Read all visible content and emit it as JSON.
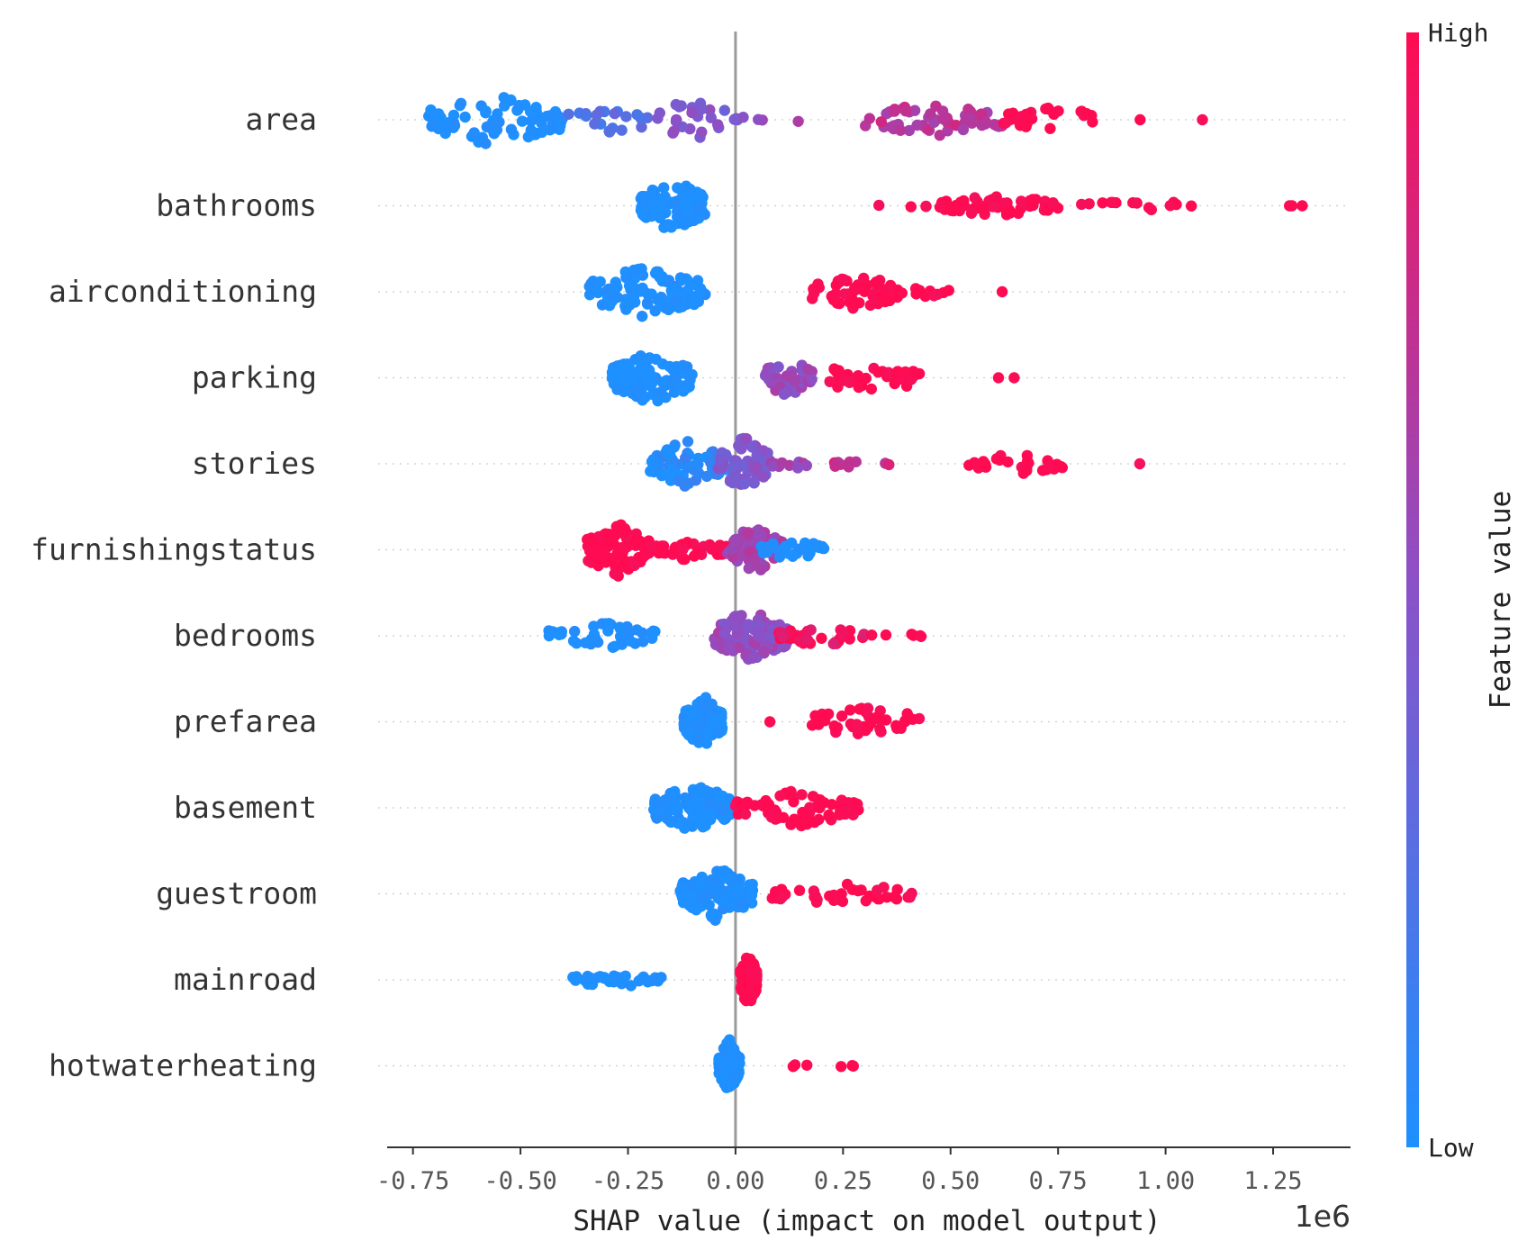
{
  "chart_data": {
    "type": "scatter",
    "subtype": "shap-beeswarm",
    "xlabel": "SHAP value (impact on model output)",
    "x_scale_note": "1e6",
    "xlim": [
      -0.81,
      1.43
    ],
    "xticks": [
      -0.75,
      -0.5,
      -0.25,
      0.0,
      0.25,
      0.5,
      0.75,
      1.0,
      1.25
    ],
    "xtick_labels": [
      "-0.75",
      "-0.50",
      "-0.25",
      "0.00",
      "0.25",
      "0.50",
      "0.75",
      "1.00",
      "1.25"
    ],
    "zero_line": 0.0,
    "colorbar": {
      "title": "Feature value",
      "high_label": "High",
      "low_label": "Low",
      "high_color": "#ff0b52",
      "low_color": "#1e90ff"
    },
    "features": [
      {
        "name": "area",
        "clusters": [
          {
            "from": -0.72,
            "to": -0.4,
            "n": 80,
            "level": 0.0,
            "spread": 1.0
          },
          {
            "from": -0.4,
            "to": -0.2,
            "n": 22,
            "level": 0.25,
            "spread": 0.6
          },
          {
            "from": -0.2,
            "to": 0.02,
            "n": 28,
            "level": 0.45,
            "spread": 0.8
          },
          {
            "from": 0.05,
            "to": 0.18,
            "n": 3,
            "level": 0.6,
            "spread": 0.1
          },
          {
            "from": 0.3,
            "to": 0.62,
            "n": 60,
            "level": 0.7,
            "spread": 0.7
          },
          {
            "from": 0.62,
            "to": 0.86,
            "n": 28,
            "level": 1.0,
            "spread": 0.5
          },
          {
            "from": 0.93,
            "to": 1.1,
            "n": 2,
            "level": 1.0,
            "spread": 0.0
          }
        ]
      },
      {
        "name": "bathrooms",
        "clusters": [
          {
            "from": -0.22,
            "to": -0.07,
            "n": 110,
            "level": 0.0,
            "spread": 1.0
          },
          {
            "from": 0.33,
            "to": 0.45,
            "n": 4,
            "level": 1.0,
            "spread": 0.1
          },
          {
            "from": 0.47,
            "to": 0.75,
            "n": 55,
            "level": 1.0,
            "spread": 0.4
          },
          {
            "from": 0.78,
            "to": 1.1,
            "n": 14,
            "level": 1.0,
            "spread": 0.2
          },
          {
            "from": 1.25,
            "to": 1.33,
            "n": 3,
            "level": 1.0,
            "spread": 0.0
          }
        ]
      },
      {
        "name": "airconditioning",
        "clusters": [
          {
            "from": -0.34,
            "to": -0.07,
            "n": 100,
            "level": 0.0,
            "spread": 1.0
          },
          {
            "from": 0.17,
            "to": 0.38,
            "n": 55,
            "level": 1.0,
            "spread": 0.7
          },
          {
            "from": 0.38,
            "to": 0.5,
            "n": 10,
            "level": 1.0,
            "spread": 0.2
          },
          {
            "from": 0.62,
            "to": 0.62,
            "n": 1,
            "level": 1.0,
            "spread": 0.0
          }
        ]
      },
      {
        "name": "parking",
        "clusters": [
          {
            "from": -0.29,
            "to": -0.1,
            "n": 95,
            "level": 0.0,
            "spread": 1.0
          },
          {
            "from": 0.06,
            "to": 0.19,
            "n": 40,
            "level": 0.55,
            "spread": 0.7
          },
          {
            "from": 0.19,
            "to": 0.43,
            "n": 40,
            "level": 1.0,
            "spread": 0.6
          },
          {
            "from": 0.55,
            "to": 0.7,
            "n": 2,
            "level": 1.0,
            "spread": 0.0
          }
        ]
      },
      {
        "name": "stories",
        "clusters": [
          {
            "from": -0.2,
            "to": -0.02,
            "n": 75,
            "level": 0.05,
            "spread": 0.9
          },
          {
            "from": -0.04,
            "to": 0.08,
            "n": 70,
            "level": 0.45,
            "spread": 1.0
          },
          {
            "from": 0.08,
            "to": 0.18,
            "n": 10,
            "level": 0.6,
            "spread": 0.2
          },
          {
            "from": 0.22,
            "to": 0.36,
            "n": 12,
            "level": 0.75,
            "spread": 0.2
          },
          {
            "from": 0.54,
            "to": 0.77,
            "n": 30,
            "level": 1.0,
            "spread": 0.4
          },
          {
            "from": 0.94,
            "to": 0.94,
            "n": 1,
            "level": 1.0,
            "spread": 0.0
          }
        ]
      },
      {
        "name": "furnishingstatus",
        "clusters": [
          {
            "from": -0.35,
            "to": -0.2,
            "n": 80,
            "level": 1.0,
            "spread": 1.0
          },
          {
            "from": -0.2,
            "to": -0.02,
            "n": 40,
            "level": 1.0,
            "spread": 0.4
          },
          {
            "from": -0.02,
            "to": 0.11,
            "n": 70,
            "level": 0.6,
            "spread": 0.9
          },
          {
            "from": 0.06,
            "to": 0.21,
            "n": 30,
            "level": 0.0,
            "spread": 0.4
          }
        ]
      },
      {
        "name": "bedrooms",
        "clusters": [
          {
            "from": -0.44,
            "to": -0.18,
            "n": 40,
            "level": 0.0,
            "spread": 0.5
          },
          {
            "from": -0.05,
            "to": 0.12,
            "n": 110,
            "level": 0.55,
            "spread": 1.0
          },
          {
            "from": 0.1,
            "to": 0.3,
            "n": 35,
            "level": 0.95,
            "spread": 0.4
          },
          {
            "from": 0.3,
            "to": 0.44,
            "n": 6,
            "level": 1.0,
            "spread": 0.1
          }
        ]
      },
      {
        "name": "prefarea",
        "clusters": [
          {
            "from": -0.12,
            "to": -0.03,
            "n": 110,
            "level": 0.0,
            "spread": 1.0
          },
          {
            "from": 0.08,
            "to": 0.08,
            "n": 1,
            "level": 1.0,
            "spread": 0.0
          },
          {
            "from": 0.17,
            "to": 0.43,
            "n": 45,
            "level": 1.0,
            "spread": 0.6
          }
        ]
      },
      {
        "name": "basement",
        "clusters": [
          {
            "from": -0.19,
            "to": -0.01,
            "n": 130,
            "level": 0.0,
            "spread": 1.0
          },
          {
            "from": 0.0,
            "to": 0.29,
            "n": 70,
            "level": 1.0,
            "spread": 0.7
          }
        ]
      },
      {
        "name": "guestroom",
        "clusters": [
          {
            "from": -0.13,
            "to": 0.04,
            "n": 120,
            "level": 0.0,
            "spread": 1.0
          },
          {
            "from": 0.07,
            "to": 0.41,
            "n": 40,
            "level": 1.0,
            "spread": 0.4
          }
        ]
      },
      {
        "name": "mainroad",
        "clusters": [
          {
            "from": -0.38,
            "to": -0.17,
            "n": 40,
            "level": 0.0,
            "spread": 0.3
          },
          {
            "from": 0.01,
            "to": 0.05,
            "n": 90,
            "level": 1.0,
            "spread": 1.0
          }
        ]
      },
      {
        "name": "hotwaterheating",
        "clusters": [
          {
            "from": -0.04,
            "to": 0.01,
            "n": 110,
            "level": 0.0,
            "spread": 1.0
          },
          {
            "from": 0.13,
            "to": 0.33,
            "n": 6,
            "level": 1.0,
            "spread": 0.1
          }
        ]
      }
    ]
  }
}
